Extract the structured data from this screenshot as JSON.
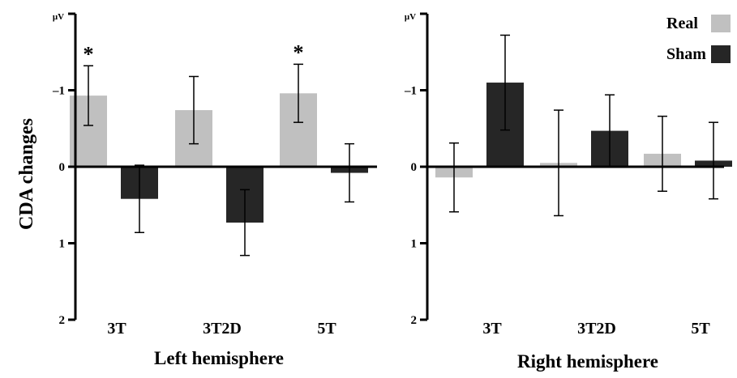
{
  "ylabel": "CDA changes",
  "unit": "μV",
  "legend": [
    {
      "label": "Real",
      "color": "#c0c0c0"
    },
    {
      "label": "Sham",
      "color": "#262626"
    }
  ],
  "chart_data": [
    {
      "type": "bar",
      "title": "Left hemisphere",
      "xlabel": "Left hemisphere",
      "ylabel": "CDA changes",
      "unit": "μV",
      "categories": [
        "3T",
        "3T2D",
        "5T"
      ],
      "ylim": [
        2,
        -2
      ],
      "yticks": [
        2,
        1,
        0,
        -1
      ],
      "ytick_labels": [
        "2",
        "1",
        "0",
        "–1"
      ],
      "series": [
        {
          "name": "Real",
          "color": "#c0c0c0",
          "values": [
            -0.93,
            -0.74,
            -0.96
          ],
          "errors": [
            0.39,
            0.44,
            0.38
          ]
        },
        {
          "name": "Sham",
          "color": "#262626",
          "values": [
            0.42,
            0.73,
            0.08
          ],
          "errors": [
            0.44,
            0.43,
            0.38
          ]
        }
      ],
      "significance": [
        "*",
        "",
        "*"
      ],
      "legend": "none"
    },
    {
      "type": "bar",
      "title": "Right hemisphere",
      "xlabel": "Right hemisphere",
      "ylabel": "",
      "unit": "μV",
      "categories": [
        "3T",
        "3T2D",
        "5T"
      ],
      "ylim": [
        2,
        -2
      ],
      "yticks": [
        2,
        1,
        0,
        -1
      ],
      "ytick_labels": [
        "2",
        "1",
        "0",
        "–1"
      ],
      "series": [
        {
          "name": "Real",
          "color": "#c0c0c0",
          "values": [
            0.14,
            -0.05,
            -0.17
          ],
          "errors": [
            0.45,
            0.69,
            0.49
          ]
        },
        {
          "name": "Sham",
          "color": "#262626",
          "values": [
            -1.1,
            -0.47,
            -0.08
          ],
          "errors": [
            0.62,
            0.47,
            0.5
          ]
        }
      ],
      "significance": [
        "",
        "",
        ""
      ],
      "legend": "top-right"
    }
  ]
}
